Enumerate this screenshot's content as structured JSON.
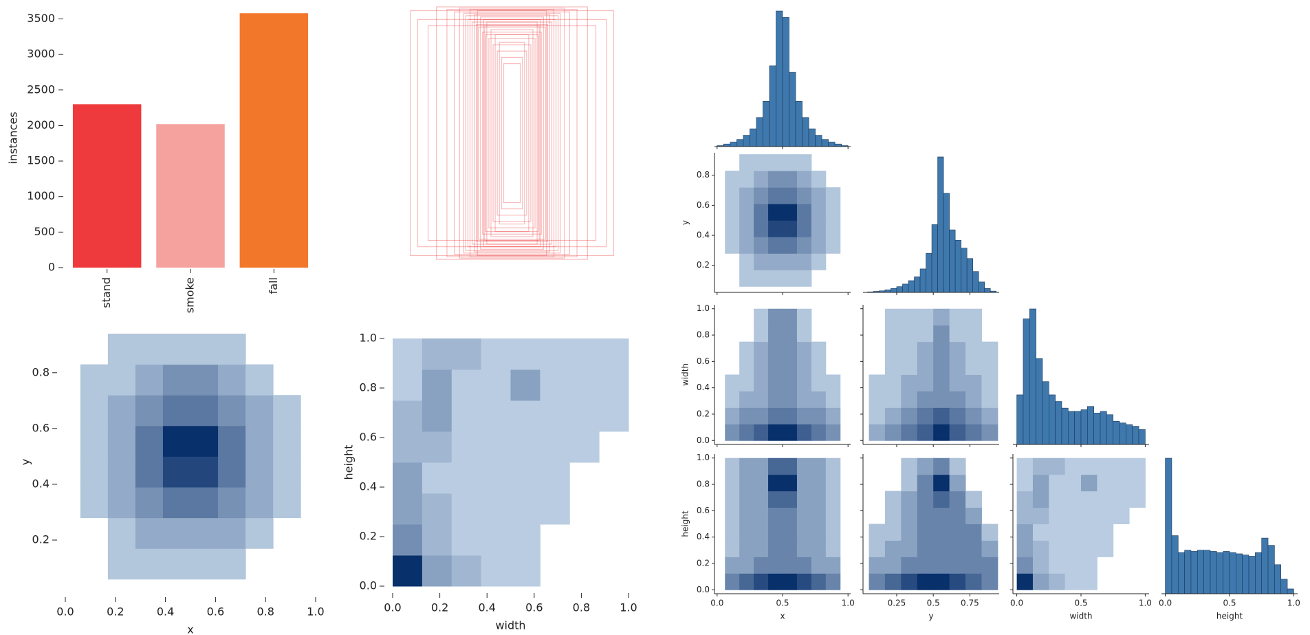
{
  "chart_data": [
    {
      "type": "bar",
      "ylabel": "instances",
      "categories": [
        "stand",
        "smoke",
        "fall"
      ],
      "values": [
        2300,
        2020,
        3580
      ],
      "colors": [
        "#ee3a3c",
        "#f5a19e",
        "#f3772a"
      ],
      "ylim": [
        0,
        3650
      ],
      "yticks": [
        0,
        500,
        1000,
        1500,
        2000,
        2500,
        3000,
        3500
      ]
    },
    {
      "type": "boxes",
      "color": "#ee3a3c",
      "widths": [
        0.97,
        0.9,
        0.8,
        0.72,
        0.62,
        0.55,
        0.5,
        0.46,
        0.44,
        0.42,
        0.4,
        0.38,
        0.36,
        0.34,
        0.33,
        0.32,
        0.3,
        0.28,
        0.27,
        0.26,
        0.25,
        0.24,
        0.22,
        0.2,
        0.18,
        0.16,
        0.14,
        0.12,
        0.1,
        0.08
      ],
      "heights": [
        0.97,
        0.9,
        0.85,
        1.0,
        0.98,
        0.96,
        0.99,
        0.95,
        0.93,
        0.9,
        0.98,
        0.88,
        0.94,
        0.86,
        0.97,
        0.84,
        0.92,
        0.8,
        0.9,
        0.85,
        0.78,
        0.88,
        0.75,
        0.82,
        0.7,
        0.78,
        0.65,
        0.72,
        0.6,
        0.55
      ]
    },
    {
      "type": "hist2d",
      "xlabel": "x",
      "ylabel": "y",
      "xlim": [
        0,
        1
      ],
      "ylim": [
        0.02,
        0.94
      ],
      "xticks": [
        {
          "value": 0,
          "label": "0.0"
        },
        0.2,
        0.4,
        0.6,
        0.8,
        {
          "value": 1,
          "label": "1.0"
        }
      ],
      "yticks": [
        0.2,
        0.4,
        0.6,
        0.8
      ],
      "xedges": [
        0.06,
        0.17,
        0.28,
        0.39,
        0.5,
        0.61,
        0.72,
        0.83,
        0.94
      ],
      "yedges": [
        0.06,
        0.17,
        0.28,
        0.39,
        0.5,
        0.61,
        0.72,
        0.83,
        0.94
      ],
      "counts": [
        [
          0,
          1,
          1,
          1,
          1,
          1,
          0,
          0
        ],
        [
          0,
          1,
          2,
          2,
          2,
          2,
          1,
          0
        ],
        [
          1,
          2,
          3,
          4,
          4,
          3,
          2,
          1
        ],
        [
          1,
          2,
          4,
          6,
          6,
          4,
          2,
          1
        ],
        [
          1,
          2,
          4,
          7,
          7,
          4,
          2,
          1
        ],
        [
          1,
          2,
          3,
          4,
          4,
          3,
          2,
          1
        ],
        [
          1,
          1,
          2,
          3,
          3,
          2,
          1,
          0
        ],
        [
          0,
          1,
          1,
          1,
          1,
          1,
          0,
          0
        ]
      ]
    },
    {
      "type": "hist2d",
      "xlabel": "width",
      "ylabel": "height",
      "xlim": [
        0,
        1
      ],
      "ylim": [
        0,
        1
      ],
      "xticks": [
        {
          "value": 0,
          "label": "0.0"
        },
        0.2,
        0.4,
        0.6,
        0.8,
        {
          "value": 1,
          "label": "1.0"
        }
      ],
      "yticks": [
        {
          "value": 0,
          "label": "0.0"
        },
        0.2,
        0.4,
        0.6,
        0.8,
        {
          "value": 1,
          "label": "1.0"
        }
      ],
      "xedges": [
        0,
        0.125,
        0.25,
        0.375,
        0.5,
        0.625,
        0.75,
        0.875,
        1
      ],
      "yedges": [
        0,
        0.125,
        0.25,
        0.375,
        0.5,
        0.625,
        0.75,
        0.875,
        1
      ],
      "counts": [
        [
          9,
          3,
          2,
          1,
          1,
          0,
          0,
          0
        ],
        [
          4,
          2,
          1,
          1,
          1,
          0,
          0,
          0
        ],
        [
          3,
          2,
          1,
          1,
          1,
          1,
          0,
          0
        ],
        [
          3,
          1,
          1,
          1,
          1,
          1,
          0,
          0
        ],
        [
          2,
          2,
          1,
          1,
          1,
          1,
          1,
          0
        ],
        [
          2,
          3,
          1,
          1,
          1,
          1,
          1,
          1
        ],
        [
          1,
          3,
          1,
          1,
          3,
          1,
          1,
          1
        ],
        [
          1,
          2,
          2,
          1,
          1,
          1,
          1,
          1
        ]
      ]
    },
    {
      "type": "pairgrid",
      "variables": [
        "x",
        "y",
        "width",
        "height"
      ],
      "lims": [
        [
          -0.02,
          1.02
        ],
        [
          0.02,
          0.95
        ],
        [
          -0.03,
          1.03
        ],
        [
          -0.03,
          1.03
        ]
      ],
      "xticks": [
        [
          {
            "value": 0,
            "label": "0.0"
          },
          0.5,
          {
            "value": 1,
            "label": "1.0"
          }
        ],
        [
          0.25,
          0.5,
          0.75
        ],
        [
          {
            "value": 0,
            "label": "0.0"
          },
          0.5,
          {
            "value": 1,
            "label": "1.0"
          }
        ],
        [
          {
            "value": 0,
            "label": "0.0"
          },
          0.5,
          {
            "value": 1,
            "label": "1.0"
          }
        ]
      ],
      "yticks": [
        [
          0.2,
          0.4,
          0.6,
          0.8
        ],
        [
          {
            "value": 0,
            "label": "0.0"
          },
          0.2,
          0.4,
          0.6,
          0.8,
          {
            "value": 1,
            "label": "1.0"
          }
        ],
        [
          {
            "value": 0,
            "label": "0.0"
          },
          0.2,
          0.4,
          0.6,
          0.8,
          {
            "value": 1,
            "label": "1.0"
          }
        ]
      ],
      "hist_edges": [
        [
          0,
          0.05,
          0.1,
          0.15,
          0.2,
          0.25,
          0.3,
          0.35,
          0.4,
          0.45,
          0.5,
          0.55,
          0.6,
          0.65,
          0.7,
          0.75,
          0.8,
          0.85,
          0.9,
          0.95,
          1
        ],
        [
          0.05,
          0.09,
          0.13,
          0.17,
          0.21,
          0.25,
          0.29,
          0.33,
          0.37,
          0.41,
          0.45,
          0.49,
          0.53,
          0.57,
          0.61,
          0.65,
          0.69,
          0.73,
          0.77,
          0.81,
          0.85,
          0.89,
          0.93
        ],
        [
          0,
          0.05,
          0.1,
          0.15,
          0.2,
          0.25,
          0.3,
          0.35,
          0.4,
          0.45,
          0.5,
          0.55,
          0.6,
          0.65,
          0.7,
          0.75,
          0.8,
          0.85,
          0.9,
          0.95,
          1
        ],
        [
          0,
          0.05,
          0.1,
          0.15,
          0.2,
          0.25,
          0.3,
          0.35,
          0.4,
          0.45,
          0.5,
          0.55,
          0.6,
          0.65,
          0.7,
          0.75,
          0.8,
          0.85,
          0.9,
          0.95,
          1
        ]
      ],
      "hist_counts": [
        [
          3,
          8,
          14,
          22,
          35,
          55,
          90,
          140,
          250,
          420,
          400,
          230,
          140,
          90,
          55,
          35,
          22,
          14,
          8,
          3
        ],
        [
          2,
          4,
          6,
          10,
          15,
          22,
          32,
          45,
          60,
          90,
          150,
          260,
          520,
          380,
          240,
          200,
          170,
          130,
          80,
          40,
          15,
          5
        ],
        [
          150,
          380,
          410,
          260,
          190,
          150,
          130,
          110,
          100,
          100,
          105,
          115,
          95,
          100,
          90,
          70,
          65,
          60,
          55,
          45
        ],
        [
          560,
          240,
          170,
          180,
          175,
          180,
          180,
          175,
          170,
          175,
          170,
          165,
          160,
          155,
          170,
          230,
          200,
          120,
          60,
          20
        ]
      ],
      "grid_edges": [
        [
          0.06,
          0.17,
          0.28,
          0.39,
          0.5,
          0.61,
          0.72,
          0.83,
          0.94
        ],
        [
          0.06,
          0.17,
          0.28,
          0.39,
          0.5,
          0.61,
          0.72,
          0.83,
          0.94
        ],
        [
          0,
          0.125,
          0.25,
          0.375,
          0.5,
          0.625,
          0.75,
          0.875,
          1
        ],
        [
          0,
          0.125,
          0.25,
          0.375,
          0.5,
          0.625,
          0.75,
          0.875,
          1
        ]
      ],
      "hist2d": [
        [
          [
            [
              0,
              1,
              1,
              1,
              1,
              1,
              0,
              0
            ],
            [
              0,
              1,
              2,
              2,
              2,
              2,
              1,
              0
            ],
            [
              1,
              2,
              3,
              4,
              4,
              3,
              2,
              1
            ],
            [
              1,
              2,
              4,
              6,
              6,
              4,
              2,
              1
            ],
            [
              1,
              2,
              4,
              7,
              7,
              4,
              2,
              1
            ],
            [
              1,
              2,
              3,
              4,
              4,
              3,
              2,
              1
            ],
            [
              1,
              1,
              2,
              3,
              3,
              2,
              1,
              0
            ],
            [
              0,
              1,
              1,
              1,
              1,
              1,
              0,
              0
            ]
          ]
        ],
        [
          [
            [
              3,
              4,
              5,
              7,
              7,
              5,
              4,
              3
            ],
            [
              2,
              3,
              3,
              4,
              4,
              3,
              3,
              2
            ],
            [
              1,
              2,
              2,
              3,
              3,
              2,
              2,
              1
            ],
            [
              1,
              1,
              2,
              3,
              3,
              2,
              1,
              1
            ],
            [
              0,
              1,
              2,
              3,
              3,
              2,
              1,
              0
            ],
            [
              0,
              1,
              2,
              3,
              3,
              2,
              1,
              0
            ],
            [
              0,
              0,
              1,
              3,
              3,
              1,
              0,
              0
            ],
            [
              0,
              0,
              1,
              3,
              3,
              1,
              0,
              0
            ]
          ],
          [
            [
              2,
              3,
              4,
              5,
              7,
              5,
              4,
              3
            ],
            [
              1,
              2,
              3,
              4,
              5,
              4,
              3,
              2
            ],
            [
              1,
              1,
              2,
              3,
              3,
              3,
              2,
              1
            ],
            [
              1,
              1,
              2,
              2,
              3,
              2,
              2,
              1
            ],
            [
              0,
              1,
              1,
              2,
              3,
              2,
              1,
              1
            ],
            [
              0,
              1,
              1,
              2,
              3,
              2,
              1,
              1
            ],
            [
              0,
              1,
              1,
              1,
              3,
              1,
              1,
              0
            ],
            [
              0,
              1,
              1,
              1,
              2,
              1,
              1,
              0
            ]
          ]
        ],
        [
          [
            [
              3,
              4,
              5,
              6,
              6,
              5,
              4,
              3
            ],
            [
              2,
              2,
              3,
              3,
              3,
              3,
              2,
              2
            ],
            [
              1,
              2,
              2,
              3,
              3,
              2,
              2,
              1
            ],
            [
              1,
              2,
              2,
              3,
              3,
              2,
              2,
              1
            ],
            [
              1,
              2,
              2,
              3,
              3,
              2,
              2,
              1
            ],
            [
              1,
              2,
              2,
              4,
              4,
              2,
              2,
              1
            ],
            [
              1,
              2,
              2,
              6,
              6,
              2,
              2,
              1
            ],
            [
              1,
              2,
              2,
              4,
              4,
              2,
              2,
              1
            ]
          ],
          [
            [
              3,
              4,
              5,
              6,
              6,
              5,
              4,
              3
            ],
            [
              2,
              2,
              3,
              3,
              3,
              3,
              3,
              3
            ],
            [
              1,
              2,
              2,
              3,
              3,
              3,
              3,
              2
            ],
            [
              1,
              1,
              2,
              3,
              3,
              3,
              3,
              1
            ],
            [
              0,
              1,
              2,
              3,
              3,
              3,
              2,
              0
            ],
            [
              0,
              1,
              2,
              3,
              4,
              3,
              1,
              0
            ],
            [
              0,
              0,
              1,
              3,
              6,
              2,
              0,
              0
            ],
            [
              0,
              0,
              1,
              2,
              3,
              1,
              0,
              0
            ]
          ],
          [
            [
              9,
              3,
              2,
              1,
              1,
              0,
              0,
              0
            ],
            [
              4,
              2,
              1,
              1,
              1,
              0,
              0,
              0
            ],
            [
              3,
              2,
              1,
              1,
              1,
              1,
              0,
              0
            ],
            [
              3,
              1,
              1,
              1,
              1,
              1,
              0,
              0
            ],
            [
              2,
              2,
              1,
              1,
              1,
              1,
              1,
              0
            ],
            [
              2,
              3,
              1,
              1,
              1,
              1,
              1,
              1
            ],
            [
              1,
              3,
              1,
              1,
              3,
              1,
              1,
              1
            ],
            [
              1,
              2,
              2,
              1,
              1,
              1,
              1,
              1
            ]
          ]
        ]
      ]
    }
  ]
}
